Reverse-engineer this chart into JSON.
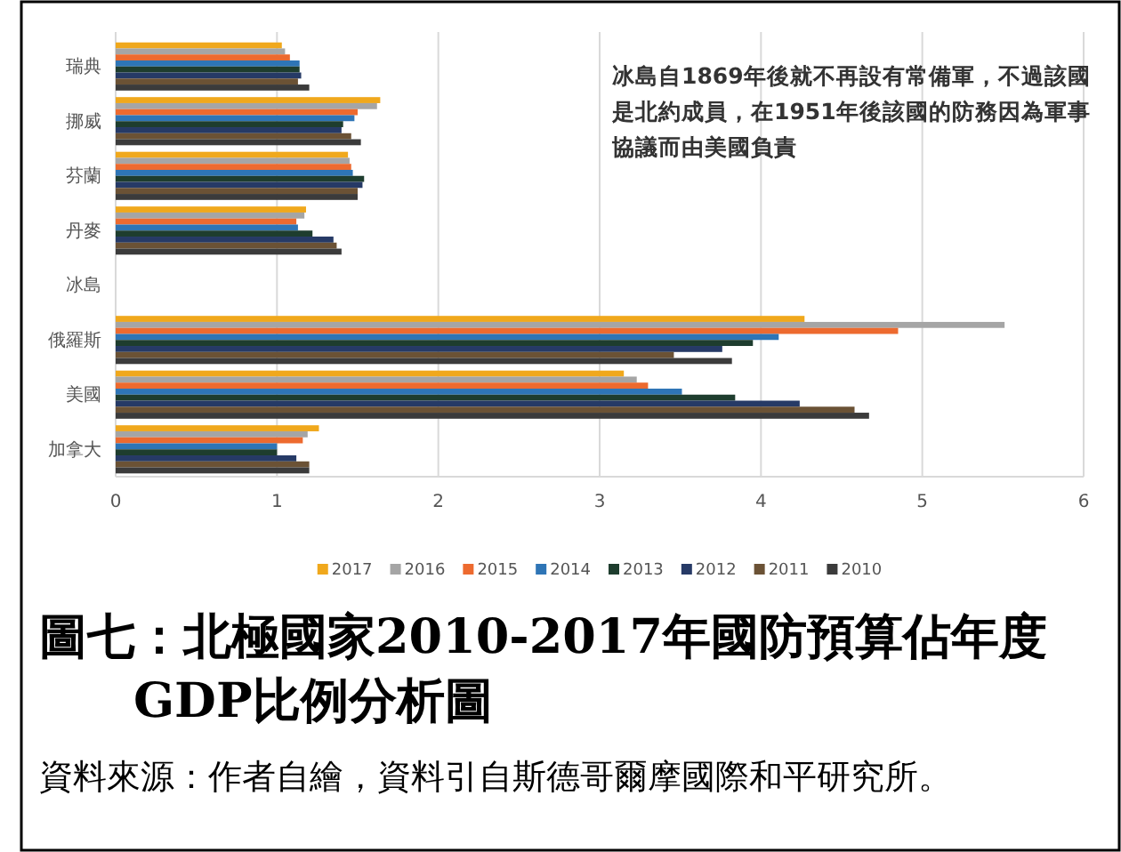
{
  "chart_data": {
    "type": "bar",
    "orientation": "horizontal",
    "title": "圖七：北極國家2010-2017年國防預算佔年度GDP比例分析圖",
    "categories": [
      "瑞典",
      "挪威",
      "芬蘭",
      "丹麥",
      "冰島",
      "俄羅斯",
      "美國",
      "加拿大"
    ],
    "series": [
      {
        "name": "2017",
        "color": "#f0a81c",
        "values": [
          1.03,
          1.64,
          1.44,
          1.18,
          null,
          4.27,
          3.15,
          1.26
        ]
      },
      {
        "name": "2016",
        "color": "#a5a5a5",
        "values": [
          1.05,
          1.62,
          1.45,
          1.17,
          null,
          5.51,
          3.23,
          1.19
        ]
      },
      {
        "name": "2015",
        "color": "#ed6a2f",
        "values": [
          1.08,
          1.5,
          1.46,
          1.12,
          null,
          4.85,
          3.3,
          1.16
        ]
      },
      {
        "name": "2014",
        "color": "#2e75b6",
        "values": [
          1.14,
          1.48,
          1.47,
          1.13,
          null,
          4.11,
          3.51,
          1.0
        ]
      },
      {
        "name": "2013",
        "color": "#1e3d2e",
        "values": [
          1.14,
          1.41,
          1.54,
          1.22,
          null,
          3.95,
          3.84,
          1.0
        ]
      },
      {
        "name": "2012",
        "color": "#263a66",
        "values": [
          1.15,
          1.4,
          1.53,
          1.35,
          null,
          3.76,
          4.24,
          1.12
        ]
      },
      {
        "name": "2011",
        "color": "#6b5235",
        "values": [
          1.13,
          1.46,
          1.5,
          1.37,
          null,
          3.46,
          4.58,
          1.2
        ]
      },
      {
        "name": "2010",
        "color": "#3b3b3b",
        "values": [
          1.2,
          1.52,
          1.5,
          1.4,
          null,
          3.82,
          4.67,
          1.2
        ]
      }
    ],
    "xlim": [
      0,
      6
    ],
    "xticks": [
      0,
      1,
      2,
      3,
      4,
      5,
      6
    ],
    "grid": "x",
    "legend": "bottom",
    "annotations": [
      "冰島自1869年後就不再設有常備軍，不過該國是北約成員，在1951年後該國的防務因為軍事協議而由美國負責",
      "資料來源：作者自繪，資料引自斯德哥爾摩國際和平研究所。"
    ]
  }
}
